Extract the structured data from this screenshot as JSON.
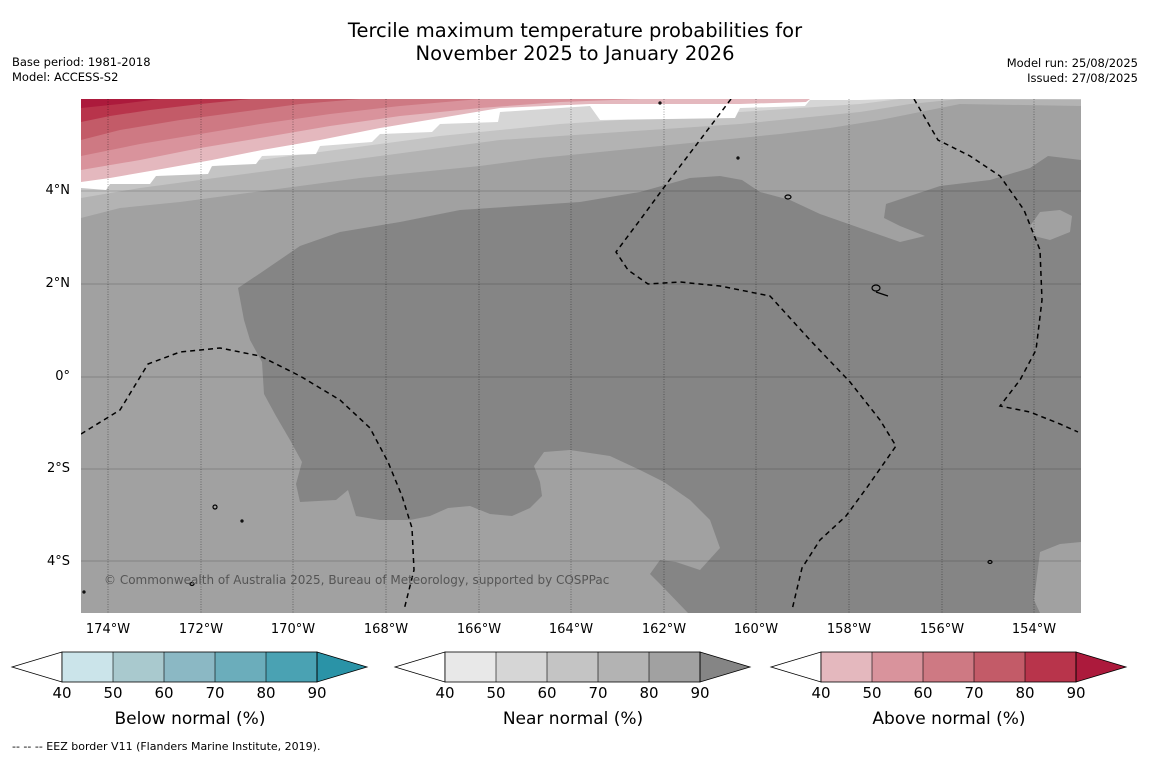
{
  "title": {
    "line1": "Tercile maximum temperature probabilities for",
    "line2": "November 2025 to January 2026"
  },
  "meta": {
    "base_period": "Base period: 1981-2018",
    "model": "Model: ACCESS-S2",
    "model_run": "Model run: 25/08/2025",
    "issued": "Issued: 27/08/2025"
  },
  "map": {
    "lon_range": [
      -174.6,
      -153.0
    ],
    "lat_range": [
      -5.0,
      6.0
    ],
    "lat_ticks": [
      "4°N",
      "2°N",
      "0°",
      "2°S",
      "4°S"
    ],
    "lon_ticks": [
      "174°W",
      "172°W",
      "170°W",
      "168°W",
      "166°W",
      "164°W",
      "162°W",
      "160°W",
      "158°W",
      "156°W",
      "154°W"
    ],
    "copyright": "© Commonwealth of Australia 2025, Bureau of Meteorology, supported by COSPPac",
    "border_style": "dashed"
  },
  "colorbars": [
    {
      "label": "Below normal (%)",
      "ticks": [
        "40",
        "50",
        "60",
        "70",
        "80",
        "90"
      ],
      "colors": [
        "#ffffff",
        "#cbe4ea",
        "#a9c9ce",
        "#8bb8c4",
        "#6badbb",
        "#4aa2b3",
        "#2a93a7"
      ]
    },
    {
      "label": "Near normal (%)",
      "ticks": [
        "40",
        "50",
        "60",
        "70",
        "80",
        "90"
      ],
      "colors": [
        "#ffffff",
        "#e8e8e8",
        "#d6d6d6",
        "#c4c4c4",
        "#b3b3b3",
        "#a1a1a1",
        "#858585"
      ]
    },
    {
      "label": "Above normal (%)",
      "ticks": [
        "40",
        "50",
        "60",
        "70",
        "80",
        "90"
      ],
      "colors": [
        "#ffffff",
        "#e4b8be",
        "#d9939c",
        "#ce7983",
        "#c35b68",
        "#b8344b",
        "#ac1a3c"
      ]
    }
  ],
  "footer": "--  --  -- EEZ border V11 (Flanders Marine Institute, 2019)."
}
